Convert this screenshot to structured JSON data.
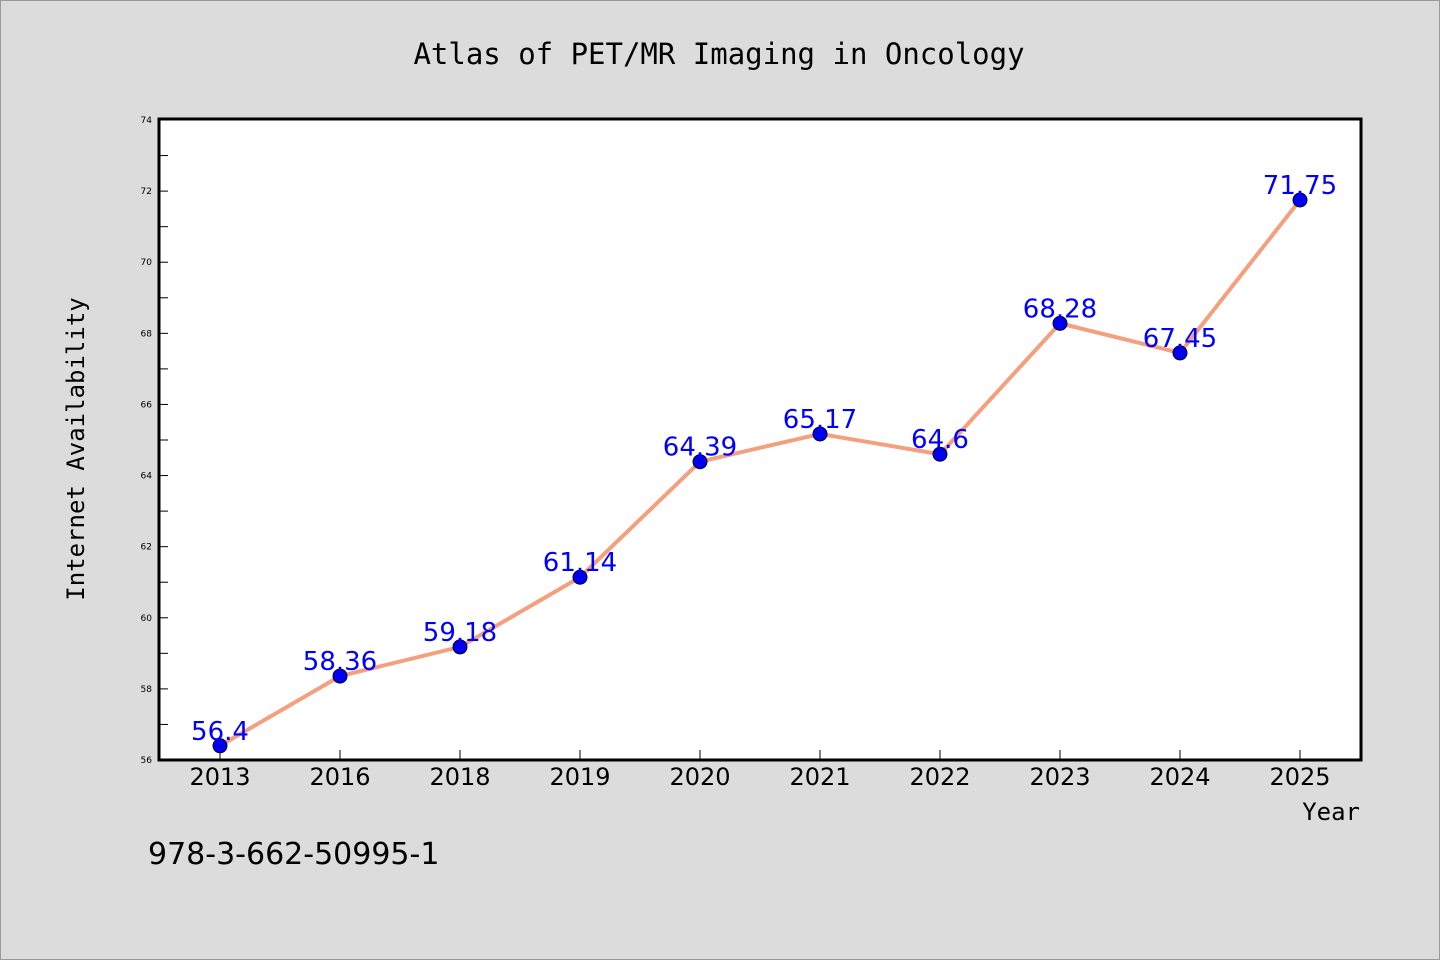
{
  "chart_data": {
    "type": "line",
    "title": "Atlas of PET/MR Imaging in Oncology",
    "xlabel": "Year",
    "ylabel": "Internet Availability",
    "categories": [
      "2013",
      "2016",
      "2018",
      "2019",
      "2020",
      "2021",
      "2022",
      "2023",
      "2024",
      "2025"
    ],
    "series": [
      {
        "values": [
          56.4,
          58.36,
          59.18,
          61.14,
          64.39,
          65.17,
          64.6,
          68.28,
          67.45,
          71.75
        ],
        "labels": [
          "56.4",
          "58.36",
          "59.18",
          "61.14",
          "64.39",
          "65.17",
          "64.6",
          "68.28",
          "67.45",
          "71.75"
        ]
      }
    ],
    "ylim": [
      56,
      74
    ],
    "yticks": [
      "56",
      "58",
      "60",
      "62",
      "64",
      "66",
      "68",
      "70",
      "72",
      "74"
    ],
    "grid": false,
    "legend": "none",
    "colors": {
      "line": "#f4a07e",
      "marker": "#0000ee",
      "data_label": "#0000ff",
      "plot_background": "#ffffff",
      "page_background": "#dcdcdc"
    }
  },
  "footer": {
    "isbn": "978-3-662-50995-1"
  }
}
